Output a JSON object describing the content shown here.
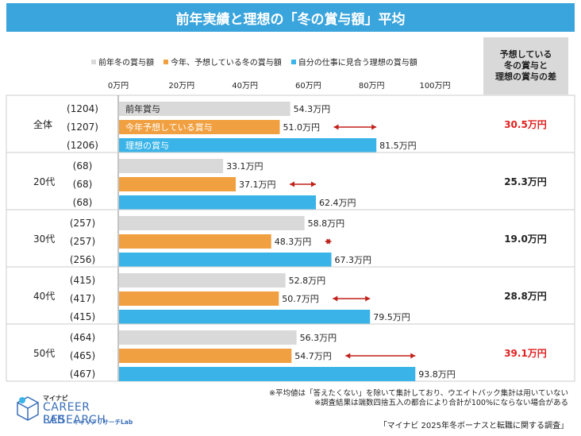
{
  "title": "前年実績と理想の「冬の賞与額」平均",
  "legend": [
    {
      "label": "前年冬の賞与額",
      "color": "#d9d9d9"
    },
    {
      "label": "今年、予想している冬の賞与額",
      "color": "#f0a040"
    },
    {
      "label": "自分の仕事に見合う理想の賞与額",
      "color": "#3ab4e8"
    }
  ],
  "diff_header": "予想している\n冬の賞与と\n理想の賞与の差",
  "chart_data": {
    "type": "bar",
    "orientation": "horizontal",
    "xlim": [
      0,
      100
    ],
    "ticks": [
      "0万円",
      "20万円",
      "40万円",
      "60万円",
      "80万円",
      "100万円"
    ],
    "tick_values": [
      0,
      20,
      40,
      60,
      80,
      100
    ],
    "bar_labels_in_first_group": [
      "前年賞与",
      "今年予想している賞与",
      "理想の賞与"
    ],
    "groups": [
      {
        "label": "全体",
        "counts": [
          "(1204)",
          "(1207)",
          "(1206)"
        ],
        "values": [
          54.3,
          51.0,
          81.5
        ],
        "value_labels": [
          "54.3万円",
          "51.0万円",
          "81.5万円"
        ],
        "diff": "30.5万円",
        "diff_color": "#e0201e"
      },
      {
        "label": "20代",
        "counts": [
          "(68)",
          "(68)",
          "(68)"
        ],
        "values": [
          33.1,
          37.1,
          62.4
        ],
        "value_labels": [
          "33.1万円",
          "37.1万円",
          "62.4万円"
        ],
        "diff": "25.3万円",
        "diff_color": "#222222"
      },
      {
        "label": "30代",
        "counts": [
          "(257)",
          "(257)",
          "(256)"
        ],
        "values": [
          58.8,
          48.3,
          67.3
        ],
        "value_labels": [
          "58.8万円",
          "48.3万円",
          "67.3万円"
        ],
        "diff": "19.0万円",
        "diff_color": "#222222"
      },
      {
        "label": "40代",
        "counts": [
          "(415)",
          "(417)",
          "(415)"
        ],
        "values": [
          52.8,
          50.7,
          79.5
        ],
        "value_labels": [
          "52.8万円",
          "50.7万円",
          "79.5万円"
        ],
        "diff": "28.8万円",
        "diff_color": "#222222"
      },
      {
        "label": "50代",
        "counts": [
          "(464)",
          "(465)",
          "(467)"
        ],
        "values": [
          56.3,
          54.7,
          93.8
        ],
        "value_labels": [
          "56.3万円",
          "54.7万円",
          "93.8万円"
        ],
        "diff": "39.1万円",
        "diff_color": "#e0201e"
      }
    ],
    "series_colors": [
      "#d9d9d9",
      "#f0a040",
      "#3ab4e8"
    ],
    "arrow_color": "#c0201a"
  },
  "notes": [
    "※平均値は「答えたくない」を除いて集計しており、ウエイトバック集計は用いていない",
    "※調査結果は端数四捨五入の都合により合計が100%にならない場合がある"
  ],
  "logo": {
    "small": "マイナビ",
    "big": "CAREER RESEARCH",
    "lab": "LAB",
    "kana": "キャリアリサーチLab"
  },
  "source": "「マイナビ 2025年冬ボーナスと転職に関する調査」"
}
